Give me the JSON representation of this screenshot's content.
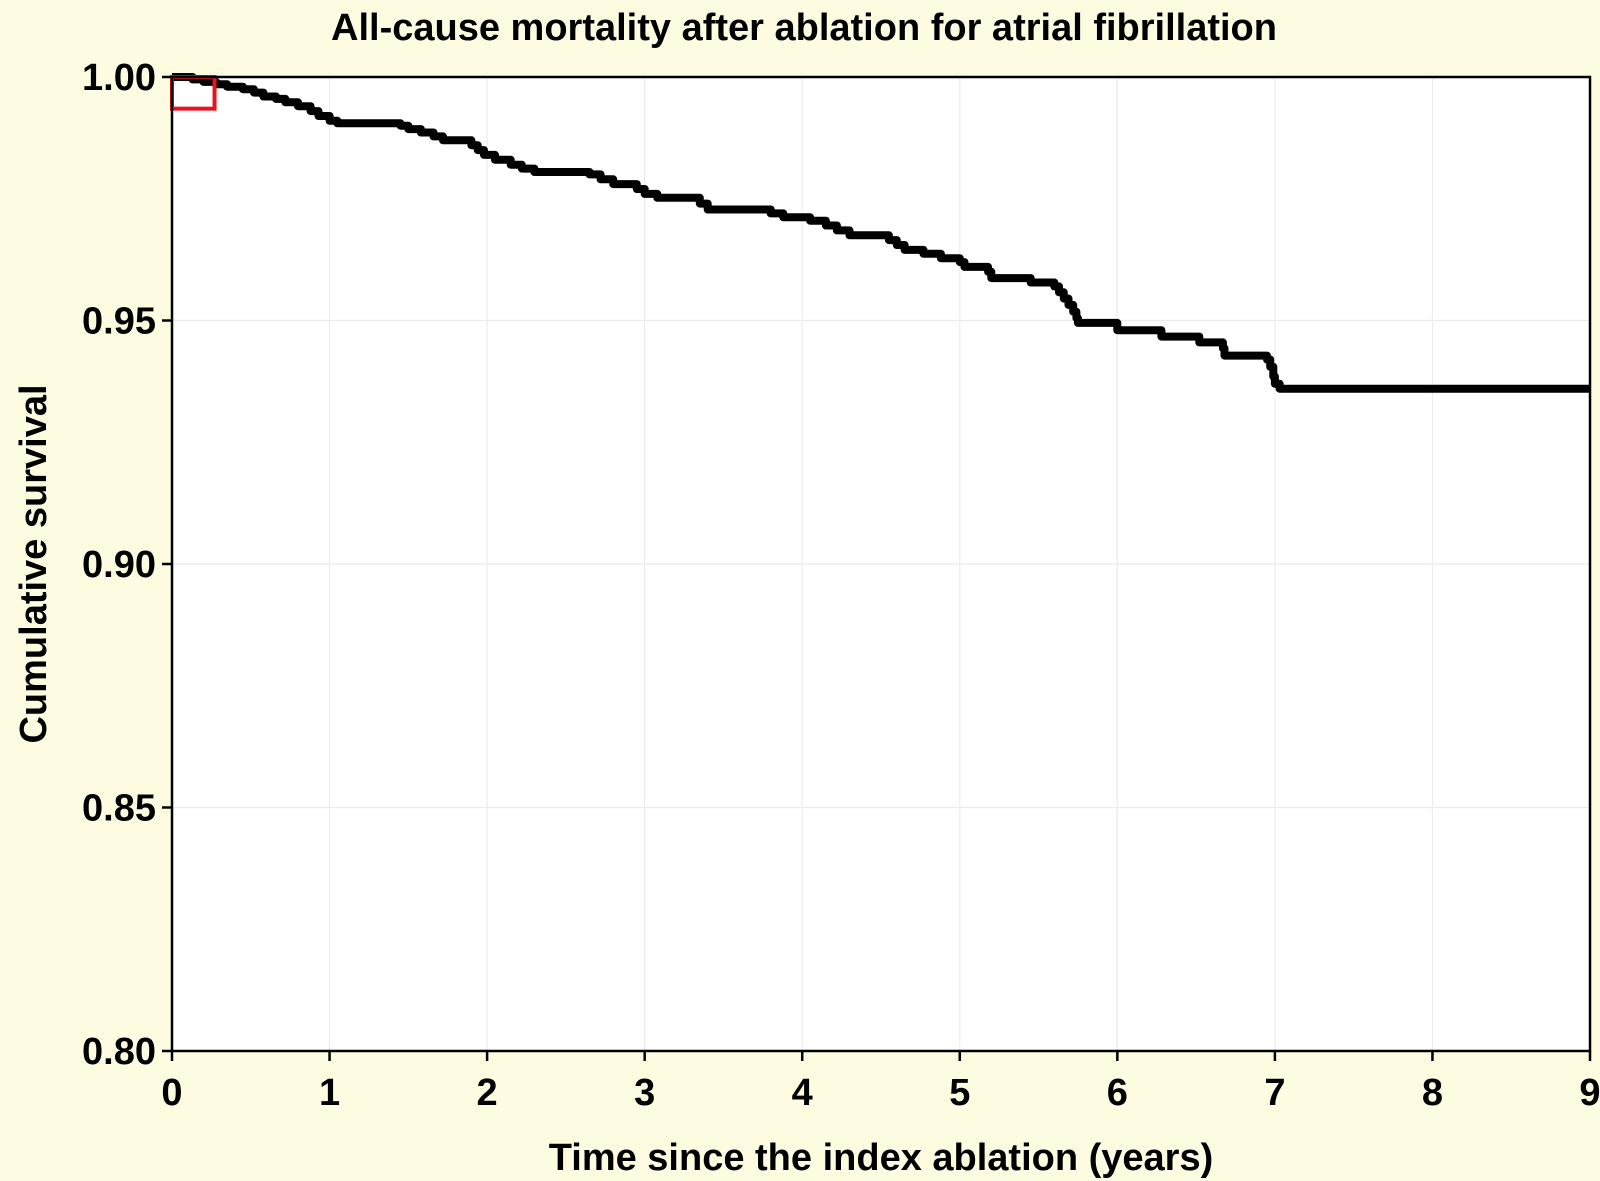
{
  "chart_data": {
    "type": "line",
    "title": "All-cause mortality after ablation for atrial fibrillation",
    "xlabel": "Time since the index ablation (years)",
    "ylabel": "Cumulative survival",
    "xlim": [
      0,
      9
    ],
    "ylim": [
      0.8,
      1.0
    ],
    "x_ticks": [
      "0",
      "1",
      "2",
      "3",
      "4",
      "5",
      "6",
      "7",
      "8",
      "9"
    ],
    "y_ticks": [
      "0.80",
      "0.85",
      "0.90",
      "0.95",
      "1.00"
    ],
    "grid": true,
    "highlight_box": {
      "x": [
        0,
        0.27
      ],
      "y": [
        0.9935,
        1.0
      ],
      "color": "#e8141b"
    },
    "series": [
      {
        "color": "#000000",
        "step": true,
        "points": [
          [
            0.0,
            1.0
          ],
          [
            0.13,
            0.9995
          ],
          [
            0.2,
            0.999
          ],
          [
            0.28,
            0.9985
          ],
          [
            0.35,
            0.998
          ],
          [
            0.45,
            0.9975
          ],
          [
            0.52,
            0.9968
          ],
          [
            0.58,
            0.996
          ],
          [
            0.66,
            0.9955
          ],
          [
            0.72,
            0.9948
          ],
          [
            0.8,
            0.994
          ],
          [
            0.88,
            0.993
          ],
          [
            0.93,
            0.992
          ],
          [
            1.0,
            0.991
          ],
          [
            1.05,
            0.9905
          ],
          [
            1.45,
            0.99
          ],
          [
            1.5,
            0.9893
          ],
          [
            1.58,
            0.9886
          ],
          [
            1.66,
            0.9878
          ],
          [
            1.72,
            0.987
          ],
          [
            1.9,
            0.986
          ],
          [
            1.94,
            0.985
          ],
          [
            1.98,
            0.984
          ],
          [
            2.05,
            0.983
          ],
          [
            2.15,
            0.982
          ],
          [
            2.22,
            0.9812
          ],
          [
            2.3,
            0.9805
          ],
          [
            2.65,
            0.98
          ],
          [
            2.72,
            0.979
          ],
          [
            2.8,
            0.978
          ],
          [
            2.95,
            0.977
          ],
          [
            3.0,
            0.976
          ],
          [
            3.08,
            0.9752
          ],
          [
            3.35,
            0.974
          ],
          [
            3.4,
            0.9728
          ],
          [
            3.8,
            0.972
          ],
          [
            3.88,
            0.9712
          ],
          [
            4.05,
            0.9705
          ],
          [
            4.15,
            0.9695
          ],
          [
            4.22,
            0.9685
          ],
          [
            4.3,
            0.9675
          ],
          [
            4.55,
            0.9665
          ],
          [
            4.6,
            0.9655
          ],
          [
            4.65,
            0.9645
          ],
          [
            4.77,
            0.9637
          ],
          [
            4.88,
            0.9628
          ],
          [
            5.0,
            0.962
          ],
          [
            5.03,
            0.961
          ],
          [
            5.18,
            0.96
          ],
          [
            5.2,
            0.9587
          ],
          [
            5.45,
            0.9578
          ],
          [
            5.6,
            0.957
          ],
          [
            5.63,
            0.9558
          ],
          [
            5.66,
            0.9545
          ],
          [
            5.69,
            0.9532
          ],
          [
            5.72,
            0.9518
          ],
          [
            5.74,
            0.9505
          ],
          [
            5.75,
            0.9495
          ],
          [
            6.0,
            0.948
          ],
          [
            6.28,
            0.9467
          ],
          [
            6.52,
            0.9455
          ],
          [
            6.67,
            0.9443
          ],
          [
            6.68,
            0.9428
          ],
          [
            6.95,
            0.942
          ],
          [
            6.97,
            0.9405
          ],
          [
            6.99,
            0.9385
          ],
          [
            7.0,
            0.937
          ],
          [
            7.03,
            0.936
          ],
          [
            9.0,
            0.936
          ]
        ]
      }
    ]
  }
}
